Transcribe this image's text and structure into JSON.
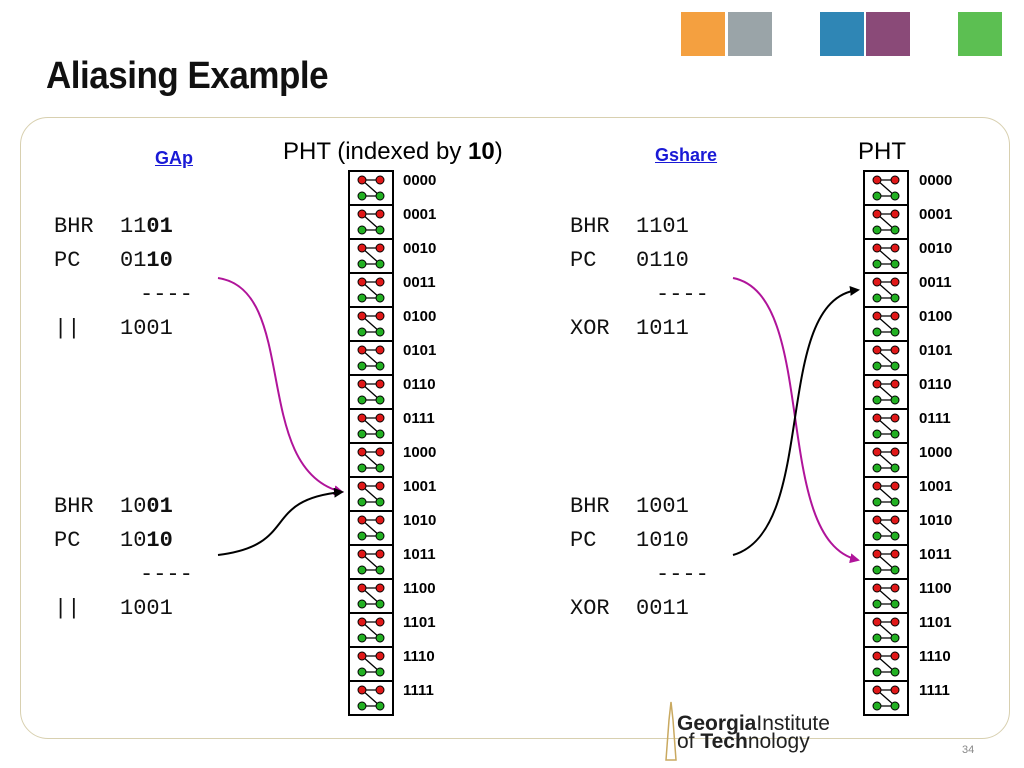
{
  "slide": {
    "title": "Aliasing Example",
    "page_number": "34"
  },
  "decor": {
    "squares": [
      {
        "name": "orange-square",
        "color": "#f4a040"
      },
      {
        "name": "photo-square-campus",
        "color": "#9aa4a8"
      },
      {
        "name": "blue-square",
        "color": "#2f86b5"
      },
      {
        "name": "photo-square-chip",
        "color": "#8a4a78"
      },
      {
        "name": "green-square",
        "color": "#5cbf52"
      }
    ]
  },
  "left": {
    "scheme_label": "GAp",
    "pht_title_prefix": "PHT (indexed by ",
    "pht_title_bold": "10",
    "pht_title_suffix": ")",
    "example1": {
      "row1_label": "BHR",
      "row1_plain": "11",
      "row1_bold": "01",
      "row2_label": "PC",
      "row2_plain": "01",
      "row2_bold": "10",
      "separator": "----",
      "row3_label": "||",
      "row3_value": "1001"
    },
    "example2": {
      "row1_label": "BHR",
      "row1_plain": "10",
      "row1_bold": "01",
      "row2_label": "PC",
      "row2_plain": "10",
      "row2_bold": "10",
      "separator": "----",
      "row3_label": "||",
      "row3_value": "1001"
    }
  },
  "right": {
    "scheme_label": "Gshare",
    "pht_title": "PHT",
    "example1": {
      "row1_label": "BHR",
      "row1_value": "1101",
      "row2_label": "PC",
      "row2_value": "0110",
      "separator": "----",
      "row3_label": "XOR",
      "row3_value": "1011"
    },
    "example2": {
      "row1_label": "BHR",
      "row1_value": "1001",
      "row2_label": "PC",
      "row2_value": "1010",
      "separator": "----",
      "row3_label": "XOR",
      "row3_value": "0011"
    }
  },
  "pht_indices": [
    "0000",
    "0001",
    "0010",
    "0011",
    "0100",
    "0101",
    "0110",
    "0111",
    "1000",
    "1001",
    "1010",
    "1011",
    "1100",
    "1101",
    "1110",
    "1111"
  ],
  "colors": {
    "arrow_magenta": "#b0149a",
    "arrow_black": "#000000",
    "state_red": "#e01818",
    "state_green": "#22b022",
    "scheme_blue": "#1a1ad6"
  },
  "logo": {
    "line1_bold": "Georgia",
    "line1_rest": "Institute",
    "line2_prefix": "of ",
    "line2_bold": "Tech",
    "line2_rest": "nology"
  }
}
